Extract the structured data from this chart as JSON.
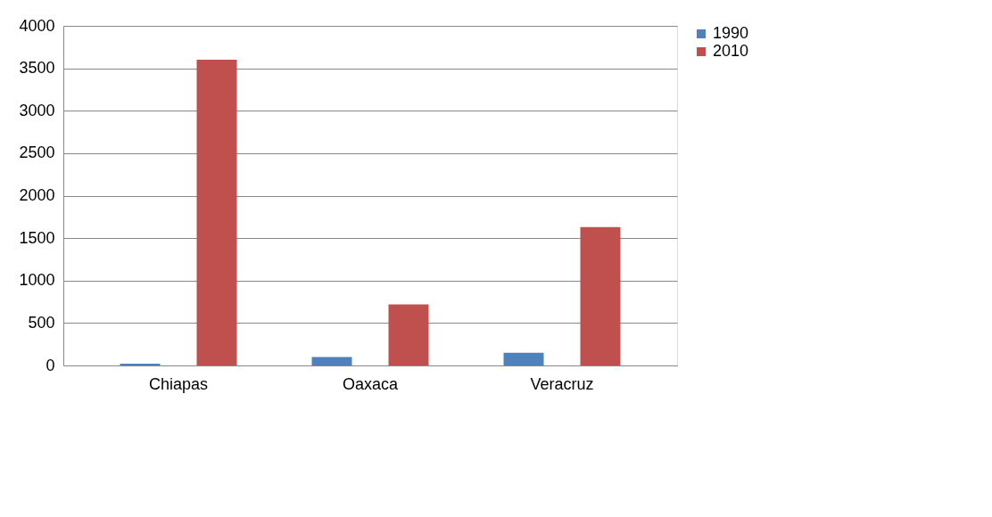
{
  "chart_data": {
    "type": "bar",
    "categories": [
      "Chiapas",
      "Oaxaca",
      "Veracruz"
    ],
    "series": [
      {
        "name": "1990",
        "color": "#4f81bd",
        "values": [
          20,
          100,
          150
        ]
      },
      {
        "name": "2010",
        "color": "#c0504d",
        "values": [
          3600,
          720,
          1630
        ]
      }
    ],
    "ylim": [
      0,
      4000
    ],
    "yticks": [
      0,
      500,
      1000,
      1500,
      2000,
      2500,
      3000,
      3500,
      4000
    ],
    "grid": "y",
    "legend": "right"
  }
}
